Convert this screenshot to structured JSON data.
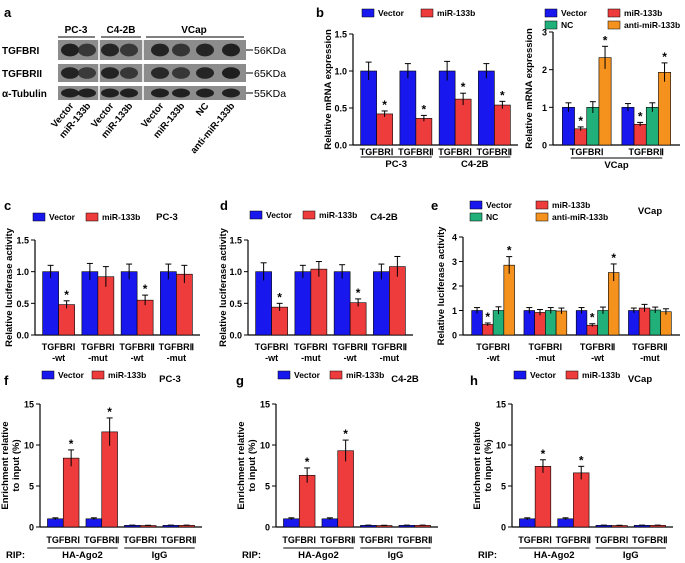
{
  "figure": {
    "panel_letters": [
      "a",
      "b",
      "c",
      "d",
      "e",
      "f",
      "g",
      "h"
    ]
  },
  "blot": {
    "cell_lines": [
      "PC-3",
      "C4-2B",
      "VCap"
    ],
    "proteins": [
      "TGFBRI",
      "TGFBRII",
      "α-Tubulin"
    ],
    "sizes": [
      "56KDa",
      "65KDa",
      "55KDa"
    ],
    "lanes": [
      "Vector",
      "miR-133b",
      "Vector",
      "miR-133b",
      "Vector",
      "miR-133b",
      "NC",
      "anti-miR-133b"
    ]
  },
  "colors": {
    "Vector": "#1818ee",
    "miR-133b": "#ee3c3c",
    "NC": "#22b07a",
    "anti-miR-133b": "#f5921e"
  },
  "chart_data": [
    {
      "id": "b1",
      "letter": "b",
      "type": "bar",
      "title": "",
      "ylabel": "Relative mRNA expression",
      "ylim": [
        0,
        1.5
      ],
      "yticks": [
        0.0,
        0.5,
        1.0,
        1.5
      ],
      "ytick_labels": [
        "0.0",
        "0.5",
        "1.0",
        "1.5"
      ],
      "legend": [
        "Vector",
        "miR-133b"
      ],
      "groups": [
        "TGFBRⅠ",
        "TGFBRⅡ",
        "TGFBRⅠ",
        "TGFBRⅡ"
      ],
      "supergroups": [
        "PC-3",
        "C4-2B"
      ],
      "series": [
        {
          "name": "Vector",
          "values": [
            1.0,
            1.0,
            1.0,
            1.0
          ],
          "err": [
            0.12,
            0.1,
            0.13,
            0.1
          ],
          "star": [
            false,
            false,
            false,
            false
          ]
        },
        {
          "name": "miR-133b",
          "values": [
            0.42,
            0.36,
            0.62,
            0.54
          ],
          "err": [
            0.04,
            0.04,
            0.08,
            0.05
          ],
          "star": [
            true,
            true,
            true,
            true
          ]
        }
      ],
      "row_label": ""
    },
    {
      "id": "b2",
      "letter": "",
      "type": "bar",
      "title": "",
      "ylabel": "Relative mRNA expression",
      "ylim": [
        0,
        3
      ],
      "yticks": [
        0,
        1,
        2,
        3
      ],
      "ytick_labels": [
        "0",
        "1",
        "2",
        "3"
      ],
      "legend": [
        "Vector",
        "miR-133b",
        "NC",
        "anti-miR-133b"
      ],
      "groups": [
        "TGFBRⅠ",
        "TGFBRⅡ"
      ],
      "supergroups": [
        "VCap"
      ],
      "series": [
        {
          "name": "Vector",
          "values": [
            1.0,
            1.0
          ],
          "err": [
            0.12,
            0.1
          ],
          "star": [
            false,
            false
          ]
        },
        {
          "name": "miR-133b",
          "values": [
            0.43,
            0.55
          ],
          "err": [
            0.05,
            0.05
          ],
          "star": [
            true,
            true
          ]
        },
        {
          "name": "NC",
          "values": [
            1.0,
            1.0
          ],
          "err": [
            0.15,
            0.12
          ],
          "star": [
            false,
            false
          ]
        },
        {
          "name": "anti-miR-133b",
          "values": [
            2.32,
            1.93
          ],
          "err": [
            0.3,
            0.25
          ],
          "star": [
            true,
            true
          ]
        }
      ],
      "row_label": ""
    },
    {
      "id": "c",
      "letter": "c",
      "type": "bar",
      "title": "PC-3",
      "ylabel": "Relative luciferase activity",
      "ylim": [
        0,
        1.5
      ],
      "yticks": [
        0.0,
        0.5,
        1.0,
        1.5
      ],
      "ytick_labels": [
        "0.0",
        "0.5",
        "1.0",
        "1.5"
      ],
      "legend": [
        "Vector",
        "miR-133b"
      ],
      "groups": [
        "TGFBRⅠ\n-wt",
        "TGFBRⅠ\n-mut",
        "TGFBRⅡ\n-wt",
        "TGFBRⅡ\n-mut"
      ],
      "supergroups": [],
      "series": [
        {
          "name": "Vector",
          "values": [
            1.0,
            1.0,
            1.0,
            1.0
          ],
          "err": [
            0.1,
            0.13,
            0.12,
            0.12
          ],
          "star": [
            false,
            false,
            false,
            false
          ]
        },
        {
          "name": "miR-133b",
          "values": [
            0.48,
            0.92,
            0.55,
            0.96
          ],
          "err": [
            0.06,
            0.16,
            0.08,
            0.14
          ],
          "star": [
            true,
            false,
            true,
            false
          ]
        }
      ],
      "row_label": ""
    },
    {
      "id": "d",
      "letter": "d",
      "type": "bar",
      "title": "C4-2B",
      "ylabel": "Relative luciferase activity",
      "ylim": [
        0,
        1.5
      ],
      "yticks": [
        0.0,
        0.5,
        1.0,
        1.5
      ],
      "ytick_labels": [
        "0.0",
        "0.5",
        "1.0",
        "1.5"
      ],
      "legend": [
        "Vector",
        "miR-133b"
      ],
      "groups": [
        "TGFBRⅠ\n-wt",
        "TGFBRⅠ\n-mut",
        "TGFBRⅡ\n-wt",
        "TGFBRⅡ\n-mut"
      ],
      "supergroups": [],
      "series": [
        {
          "name": "Vector",
          "values": [
            1.0,
            1.0,
            1.0,
            1.0
          ],
          "err": [
            0.14,
            0.1,
            0.11,
            0.12
          ],
          "star": [
            false,
            false,
            false,
            false
          ]
        },
        {
          "name": "miR-133b",
          "values": [
            0.44,
            1.04,
            0.51,
            1.08
          ],
          "err": [
            0.06,
            0.12,
            0.06,
            0.16
          ],
          "star": [
            true,
            false,
            true,
            false
          ]
        }
      ],
      "row_label": ""
    },
    {
      "id": "e",
      "letter": "e",
      "type": "bar",
      "title": "VCap",
      "ylabel": "Relative luciferase activity",
      "ylim": [
        0,
        4
      ],
      "yticks": [
        0,
        1,
        2,
        3,
        4
      ],
      "ytick_labels": [
        "0",
        "1",
        "2",
        "3",
        "4"
      ],
      "legend": [
        "Vector",
        "miR-133b",
        "NC",
        "anti-miR-133b"
      ],
      "groups": [
        "TGFBRⅠ\n-wt",
        "TGFBRⅠ\n-mut",
        "TGFBRⅡ\n-wt",
        "TGFBRⅡ\n-mut"
      ],
      "supergroups": [],
      "series": [
        {
          "name": "Vector",
          "values": [
            1.0,
            1.0,
            1.0,
            1.0
          ],
          "err": [
            0.12,
            0.12,
            0.12,
            0.1
          ],
          "star": [
            false,
            false,
            false,
            false
          ]
        },
        {
          "name": "miR-133b",
          "values": [
            0.43,
            0.92,
            0.4,
            1.1
          ],
          "err": [
            0.06,
            0.12,
            0.06,
            0.15
          ],
          "star": [
            true,
            false,
            true,
            false
          ]
        },
        {
          "name": "NC",
          "values": [
            1.0,
            1.0,
            1.0,
            1.02
          ],
          "err": [
            0.15,
            0.12,
            0.14,
            0.12
          ],
          "star": [
            false,
            false,
            false,
            false
          ]
        },
        {
          "name": "anti-miR-133b",
          "values": [
            2.85,
            0.98,
            2.55,
            0.95
          ],
          "err": [
            0.35,
            0.12,
            0.35,
            0.12
          ],
          "star": [
            true,
            false,
            true,
            false
          ]
        }
      ],
      "row_label": ""
    },
    {
      "id": "f",
      "letter": "f",
      "type": "bar",
      "title": "PC-3",
      "ylabel": "Enrichment relative\nto input (%)",
      "ylim": [
        0,
        15
      ],
      "yticks": [
        0,
        5,
        10,
        15
      ],
      "ytick_labels": [
        "0",
        "5",
        "10",
        "15"
      ],
      "legend": [
        "Vector",
        "miR-133b"
      ],
      "groups": [
        "TGFBRⅠ",
        "TGFBRⅡ",
        "TGFBRⅠ",
        "TGFBRⅡ"
      ],
      "supergroups": [
        "HA-Ago2",
        "IgG"
      ],
      "series": [
        {
          "name": "Vector",
          "values": [
            1.0,
            1.0,
            0.2,
            0.2
          ],
          "err": [
            0.12,
            0.12,
            0.03,
            0.03
          ],
          "star": [
            false,
            false,
            false,
            false
          ]
        },
        {
          "name": "miR-133b",
          "values": [
            8.4,
            11.6,
            0.18,
            0.2
          ],
          "err": [
            1.0,
            1.7,
            0.03,
            0.03
          ],
          "star": [
            true,
            true,
            false,
            false
          ]
        }
      ],
      "row_label": "RIP:"
    },
    {
      "id": "g",
      "letter": "g",
      "type": "bar",
      "title": "C4-2B",
      "ylabel": "Enrichment relative\nto input (%)",
      "ylim": [
        0,
        15
      ],
      "yticks": [
        0,
        5,
        10,
        15
      ],
      "ytick_labels": [
        "0",
        "5",
        "10",
        "15"
      ],
      "legend": [
        "Vector",
        "miR-133b"
      ],
      "groups": [
        "TGFBRⅠ",
        "TGFBRⅡ",
        "TGFBRⅠ",
        "TGFBRⅡ"
      ],
      "supergroups": [
        "HA-Ago2",
        "IgG"
      ],
      "series": [
        {
          "name": "Vector",
          "values": [
            1.0,
            1.0,
            0.2,
            0.2
          ],
          "err": [
            0.12,
            0.12,
            0.03,
            0.03
          ],
          "star": [
            false,
            false,
            false,
            false
          ]
        },
        {
          "name": "miR-133b",
          "values": [
            6.3,
            9.3,
            0.18,
            0.2
          ],
          "err": [
            0.9,
            1.3,
            0.03,
            0.03
          ],
          "star": [
            true,
            true,
            false,
            false
          ]
        }
      ],
      "row_label": "RIP:"
    },
    {
      "id": "h",
      "letter": "h",
      "type": "bar",
      "title": "VCap",
      "ylabel": "Enrichment relative\nto input (%)",
      "ylim": [
        0,
        15
      ],
      "yticks": [
        0,
        5,
        10,
        15
      ],
      "ytick_labels": [
        "0",
        "5",
        "10",
        "15"
      ],
      "legend": [
        "Vector",
        "miR-133b"
      ],
      "groups": [
        "TGFBRⅠ",
        "TGFBRⅡ",
        "TGFBRⅠ",
        "TGFBRⅡ"
      ],
      "supergroups": [
        "HA-Ago2",
        "IgG"
      ],
      "series": [
        {
          "name": "Vector",
          "values": [
            1.0,
            1.0,
            0.2,
            0.2
          ],
          "err": [
            0.12,
            0.12,
            0.03,
            0.03
          ],
          "star": [
            false,
            false,
            false,
            false
          ]
        },
        {
          "name": "miR-133b",
          "values": [
            7.4,
            6.6,
            0.18,
            0.2
          ],
          "err": [
            0.8,
            0.8,
            0.03,
            0.03
          ],
          "star": [
            true,
            true,
            false,
            false
          ]
        }
      ],
      "row_label": "RIP:"
    }
  ]
}
